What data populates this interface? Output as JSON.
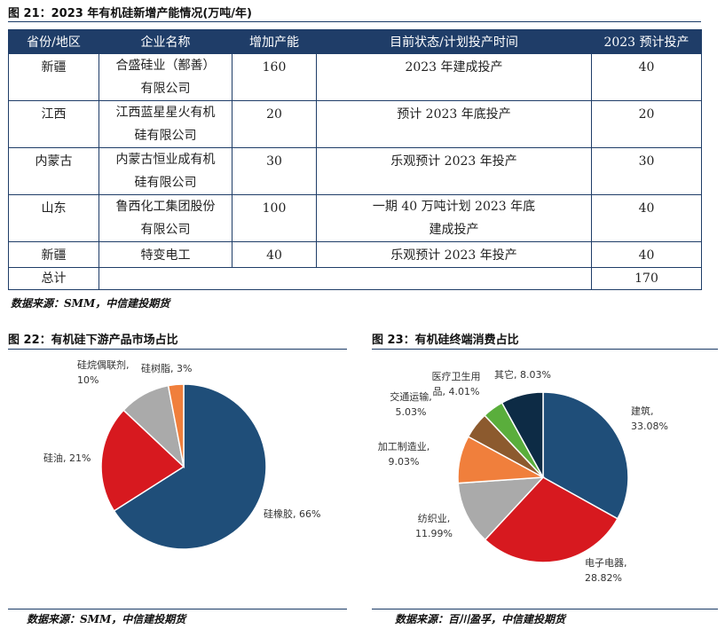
{
  "fig21": {
    "title": "图 21：2023 年有机硅新增产能情况(万吨/年)",
    "headers": [
      "省份/地区",
      "企业名称",
      "增加产能",
      "目前状态/计划投产时间",
      "2023 预计投产"
    ],
    "rows": [
      {
        "region": "新疆",
        "company": [
          "合盛硅业（鄯善）",
          "有限公司"
        ],
        "capacity": "160",
        "status": [
          "2023 年建成投产"
        ],
        "expected": "40"
      },
      {
        "region": "江西",
        "company": [
          "江西蓝星星火有机",
          "硅有限公司"
        ],
        "capacity": "20",
        "status": [
          "预计 2023 年底投产"
        ],
        "expected": "20"
      },
      {
        "region": "内蒙古",
        "company": [
          "内蒙古恒业成有机",
          "硅有限公司"
        ],
        "capacity": "30",
        "status": [
          "乐观预计 2023 年投产"
        ],
        "expected": "30"
      },
      {
        "region": "山东",
        "company": [
          "鲁西化工集团股份",
          "有限公司"
        ],
        "capacity": "100",
        "status": [
          "一期 40 万吨计划 2023 年底",
          "建成投产"
        ],
        "expected": "40"
      },
      {
        "region": "新疆",
        "company": [
          "特变电工"
        ],
        "capacity": "40",
        "status": [
          "乐观预计 2023 年投产"
        ],
        "expected": "40"
      }
    ],
    "total_label": "总计",
    "total_value": "170",
    "source": "数据来源：SMM，中信建投期货"
  },
  "fig22": {
    "title": "图 22：有机硅下游产品市场占比",
    "source": "数据来源：SMM，中信建投期货"
  },
  "fig23": {
    "title": "图 23：有机硅终端消费占比",
    "source": "数据来源：百川盈孚，中信建投期货"
  },
  "chart_data": [
    {
      "type": "pie",
      "title": "图 22：有机硅下游产品市场占比",
      "slices": [
        {
          "label": "硅橡胶",
          "value": 66,
          "display": "硅橡胶, 66%",
          "color": "#1f4e79"
        },
        {
          "label": "硅油",
          "value": 21,
          "display": "硅油, 21%",
          "color": "#d7191f"
        },
        {
          "label": "硅烷偶联剂",
          "value": 10,
          "display": [
            "硅烷偶联剂,",
            "10%"
          ],
          "color": "#aaaaaa"
        },
        {
          "label": "硅树脂",
          "value": 3,
          "display": "硅树脂, 3%",
          "color": "#f07f3c"
        }
      ]
    },
    {
      "type": "pie",
      "title": "图 23：有机硅终端消费占比",
      "slices": [
        {
          "label": "建筑",
          "value": 33.08,
          "display": [
            "建筑,",
            "33.08%"
          ],
          "color": "#1f4e79"
        },
        {
          "label": "电子电器",
          "value": 28.82,
          "display": [
            "电子电器,",
            "28.82%"
          ],
          "color": "#d7191f"
        },
        {
          "label": "纺织业",
          "value": 11.99,
          "display": [
            "纺织业,",
            "11.99%"
          ],
          "color": "#aaaaaa"
        },
        {
          "label": "加工制造业",
          "value": 9.03,
          "display": [
            "加工制造业,",
            "9.03%"
          ],
          "color": "#f07f3c"
        },
        {
          "label": "交通运输",
          "value": 5.03,
          "display": [
            "交通运输,",
            "5.03%"
          ],
          "color": "#8c5a2e"
        },
        {
          "label": "医疗卫生用品",
          "value": 4.01,
          "display": [
            "医疗卫生用",
            "品, 4.01%"
          ],
          "color": "#5aae3c"
        },
        {
          "label": "其它",
          "value": 8.03,
          "display": "其它, 8.03%",
          "color": "#0d2b45"
        }
      ]
    }
  ]
}
